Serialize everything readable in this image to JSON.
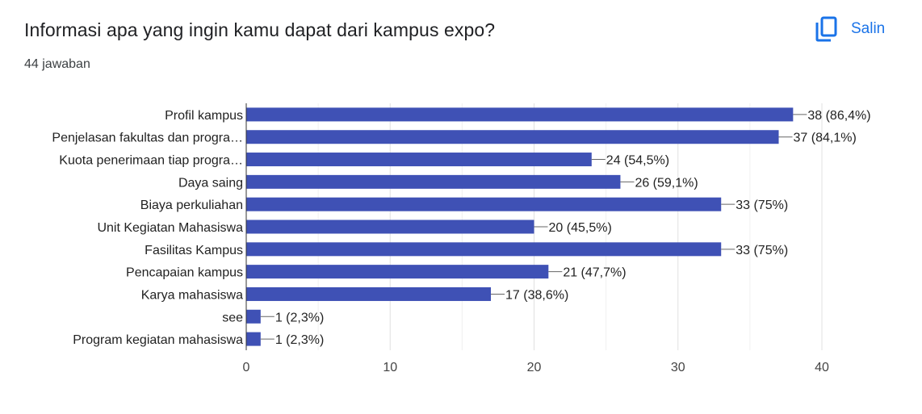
{
  "header": {
    "title": "Informasi apa yang ingin kamu dapat dari kampus expo?",
    "response_count": "44 jawaban",
    "copy_label": "Salin",
    "copy_icon": "copy-icon"
  },
  "colors": {
    "bar": "#3f51b5",
    "accent": "#1a73e8",
    "grid": "#e0e0e0",
    "axis": "#333333"
  },
  "chart_data": {
    "type": "bar",
    "orientation": "horizontal",
    "categories": [
      "Profil kampus",
      "Penjelasan fakultas dan progra…",
      "Kuota penerimaan tiap progra…",
      "Daya saing",
      "Biaya perkuliahan",
      "Unit Kegiatan Mahasiswa",
      "Fasilitas Kampus",
      "Pencapaian kampus",
      "Karya mahasiswa",
      "see",
      "Program kegiatan mahasiswa"
    ],
    "values": [
      38,
      37,
      24,
      26,
      33,
      20,
      33,
      21,
      17,
      1,
      1
    ],
    "value_labels": [
      "38 (86,4%)",
      "37 (84,1%)",
      "24 (54,5%)",
      "26 (59,1%)",
      "33 (75%)",
      "20 (45,5%)",
      "33 (75%)",
      "21 (47,7%)",
      "17 (38,6%)",
      "1 (2,3%)",
      "1 (2,3%)"
    ],
    "xlim": [
      0,
      40
    ],
    "xticks": [
      0,
      10,
      20,
      30,
      40
    ],
    "xtick_labels": [
      "0",
      "10",
      "20",
      "30",
      "40"
    ],
    "grid": true
  }
}
